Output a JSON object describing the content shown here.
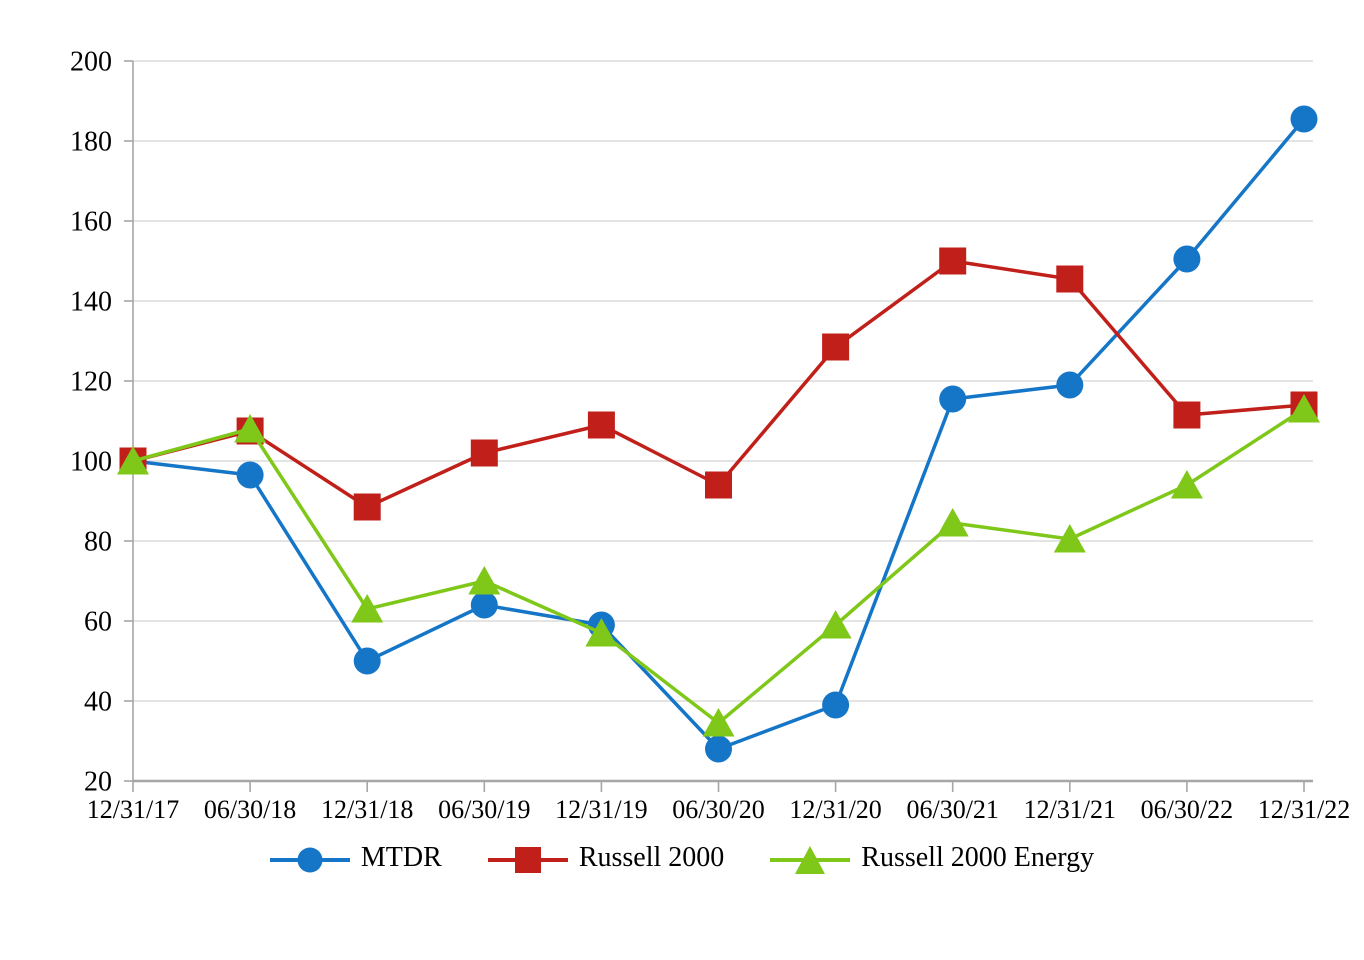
{
  "chart_data": {
    "type": "line",
    "title": "",
    "xlabel": "",
    "ylabel": "",
    "x_categories": [
      "12/31/17",
      "06/30/18",
      "12/31/18",
      "06/30/19",
      "12/31/19",
      "06/30/20",
      "12/31/20",
      "06/30/21",
      "12/31/21",
      "06/30/22",
      "12/31/22"
    ],
    "series": [
      {
        "name": "MTDR",
        "marker": "circle",
        "color": "#1576C8",
        "values": [
          100,
          96.5,
          50,
          64,
          59,
          28,
          39,
          115.5,
          119,
          150.5,
          185.5
        ]
      },
      {
        "name": "Russell 2000",
        "marker": "square",
        "color": "#C1201A",
        "values": [
          100,
          107.5,
          88.5,
          102,
          109,
          94,
          128.5,
          150,
          145.5,
          111.5,
          114
        ]
      },
      {
        "name": "Russell 2000 Energy",
        "marker": "triangle",
        "color": "#7FC819",
        "values": [
          100,
          108,
          63,
          70,
          57,
          34.5,
          59,
          84.5,
          80.5,
          94,
          113
        ]
      }
    ],
    "y_axis": {
      "min": 20,
      "max": 200,
      "step": 20,
      "tick_labels": [
        "20",
        "40",
        "60",
        "80",
        "100",
        "120",
        "140",
        "160",
        "180",
        "200"
      ]
    },
    "grid": true,
    "legend_position": "bottom",
    "colors": {
      "gridline": "#DCDCDC",
      "axis": "#A6A6A6",
      "text": "#000000"
    }
  }
}
